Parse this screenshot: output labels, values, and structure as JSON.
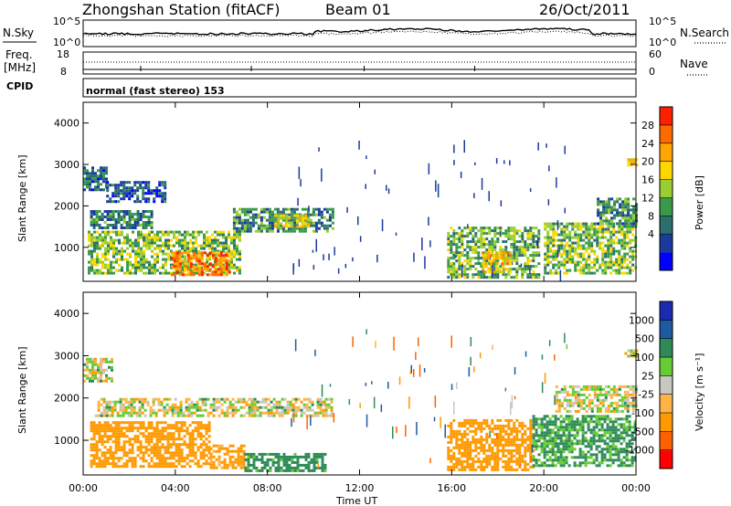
{
  "header": {
    "station": "Zhongshan Station (fitACF)",
    "beam": "Beam 01",
    "date": "26/Oct/2011"
  },
  "top_panel": {
    "left_label": "N.Sky",
    "right_label": "N.Search",
    "left_ticks": [
      "10^5",
      "10^0"
    ],
    "right_ticks": [
      "10^5",
      "10^0"
    ]
  },
  "freq_panel": {
    "left_label_1": "Freq.",
    "left_label_2": "[MHz]",
    "left_ticks": [
      "18",
      "8"
    ],
    "right_label": "Nave",
    "right_ticks": [
      "60",
      "0"
    ],
    "cpid_label": "CPID",
    "mode_text": "normal (fast stereo) 153"
  },
  "x_axis": {
    "label": "Time UT",
    "ticks": [
      "00:00",
      "04:00",
      "08:00",
      "12:00",
      "16:00",
      "20:00",
      "00:00"
    ]
  },
  "power_panel": {
    "ylabel": "Slant Range [km]",
    "yticks": [
      "4000",
      "3000",
      "2000",
      "1000"
    ],
    "colorbar_label": "Power [dB]",
    "colorbar_ticks": [
      "28",
      "24",
      "20",
      "16",
      "12",
      "8",
      "4"
    ],
    "colorbar_colors": [
      "#0000ff",
      "#1a3a9e",
      "#2a6e6e",
      "#3a9a4a",
      "#9acd32",
      "#ffd700",
      "#ffa500",
      "#ff6a00",
      "#ff2000"
    ]
  },
  "velocity_panel": {
    "ylabel": "Slant Range [km]",
    "yticks": [
      "4000",
      "3000",
      "2000",
      "1000"
    ],
    "colorbar_label": "Velocity [m s⁻¹]",
    "colorbar_ticks": [
      "1000",
      "500",
      "100",
      "25",
      "-25",
      "-100",
      "-500",
      "-1000"
    ],
    "colorbar_colors": [
      "#ff0000",
      "#ff6000",
      "#ff9900",
      "#ffb347",
      "#c8c8c0",
      "#66cc33",
      "#2e8b57",
      "#1e5aa0",
      "#1a2bb0"
    ]
  },
  "chart_data": [
    {
      "type": "heatmap",
      "title": "Power",
      "xlabel": "Time UT",
      "ylabel": "Slant Range [km]",
      "xlim": [
        0,
        24
      ],
      "ylim": [
        180,
        4500
      ],
      "cbar_range": [
        0,
        30
      ],
      "cbar_label": "Power [dB]",
      "regions": [
        {
          "t0": 0.0,
          "t1": 1.0,
          "r0": 2400,
          "r1": 2950,
          "v": 8
        },
        {
          "t0": 1.0,
          "t1": 3.5,
          "r0": 2100,
          "r1": 2600,
          "v": 6
        },
        {
          "t0": 0.2,
          "t1": 6.8,
          "r0": 350,
          "r1": 1400,
          "v": 14
        },
        {
          "t0": 3.8,
          "t1": 6.3,
          "r0": 350,
          "r1": 900,
          "v": 24
        },
        {
          "t0": 0.3,
          "t1": 3.0,
          "r0": 1500,
          "r1": 1900,
          "v": 9
        },
        {
          "t0": 6.5,
          "t1": 10.8,
          "r0": 1400,
          "r1": 1950,
          "v": 10
        },
        {
          "t0": 8.3,
          "t1": 9.8,
          "r0": 1500,
          "r1": 1800,
          "v": 18
        },
        {
          "t0": 15.8,
          "t1": 19.8,
          "r0": 300,
          "r1": 1500,
          "v": 13
        },
        {
          "t0": 17.3,
          "t1": 18.5,
          "r0": 400,
          "r1": 900,
          "v": 20
        },
        {
          "t0": 20.0,
          "t1": 24.0,
          "r0": 400,
          "r1": 1600,
          "v": 14
        },
        {
          "t0": 22.3,
          "t1": 24.0,
          "r0": 1600,
          "r1": 2200,
          "v": 10
        },
        {
          "t0": 23.5,
          "t1": 24.0,
          "r0": 3000,
          "r1": 3150,
          "v": 19
        }
      ]
    },
    {
      "type": "heatmap",
      "title": "Velocity",
      "xlabel": "Time UT",
      "ylabel": "Slant Range [km]",
      "xlim": [
        0,
        24
      ],
      "ylim": [
        180,
        4500
      ],
      "cbar_range": [
        -1000,
        1000
      ],
      "cbar_label": "Velocity [m s⁻¹]",
      "regions": [
        {
          "t0": 0.0,
          "t1": 1.2,
          "r0": 2400,
          "r1": 2950,
          "v": 0
        },
        {
          "t0": 0.5,
          "t1": 10.8,
          "r0": 1550,
          "r1": 2000,
          "v": 0
        },
        {
          "t0": 0.3,
          "t1": 5.5,
          "r0": 350,
          "r1": 1450,
          "v": -350
        },
        {
          "t0": 5.5,
          "t1": 7.0,
          "r0": 350,
          "r1": 900,
          "v": -200
        },
        {
          "t0": 7.0,
          "t1": 10.5,
          "r0": 300,
          "r1": 700,
          "v": 200
        },
        {
          "t0": 15.8,
          "t1": 19.5,
          "r0": 300,
          "r1": 1500,
          "v": -300
        },
        {
          "t0": 19.5,
          "t1": 24.0,
          "r0": 400,
          "r1": 1600,
          "v": 150
        },
        {
          "t0": 20.5,
          "t1": 24.0,
          "r0": 1700,
          "r1": 2300,
          "v": 0
        },
        {
          "t0": 23.5,
          "t1": 24.0,
          "r0": 3000,
          "r1": 3150,
          "v": 0
        }
      ]
    }
  ]
}
